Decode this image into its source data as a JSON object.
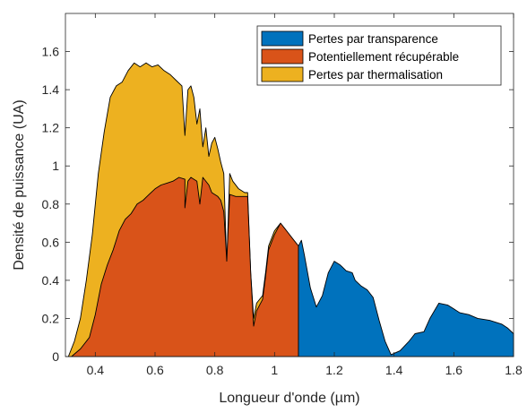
{
  "chart_data": {
    "type": "area",
    "title": "",
    "xlabel": "Longueur d'onde (µm)",
    "ylabel": "Densité de puissance (UA)",
    "xlim": [
      0.3,
      1.8
    ],
    "ylim": [
      0,
      1.8
    ],
    "xticks": [
      "0.4",
      "0.6",
      "0.8",
      "1",
      "1.2",
      "1.4",
      "1.6",
      "1.8"
    ],
    "yticks": [
      "0",
      "0.2",
      "0.4",
      "0.6",
      "0.8",
      "1",
      "1.2",
      "1.4",
      "1.6"
    ],
    "grid": false,
    "legend_position": "top-right",
    "series": [
      {
        "name": "Pertes par transparence",
        "color": "#0072BD",
        "points": [
          [
            1.08,
            0
          ],
          [
            1.08,
            0.58
          ],
          [
            1.09,
            0.61
          ],
          [
            1.1,
            0.53
          ],
          [
            1.12,
            0.36
          ],
          [
            1.14,
            0.26
          ],
          [
            1.16,
            0.32
          ],
          [
            1.18,
            0.44
          ],
          [
            1.2,
            0.5
          ],
          [
            1.22,
            0.48
          ],
          [
            1.24,
            0.45
          ],
          [
            1.26,
            0.44
          ],
          [
            1.27,
            0.4
          ],
          [
            1.29,
            0.37
          ],
          [
            1.31,
            0.35
          ],
          [
            1.33,
            0.31
          ],
          [
            1.35,
            0.19
          ],
          [
            1.37,
            0.08
          ],
          [
            1.39,
            0.01
          ],
          [
            1.42,
            0.03
          ],
          [
            1.45,
            0.08
          ],
          [
            1.47,
            0.12
          ],
          [
            1.5,
            0.13
          ],
          [
            1.52,
            0.2
          ],
          [
            1.55,
            0.28
          ],
          [
            1.58,
            0.27
          ],
          [
            1.6,
            0.25
          ],
          [
            1.62,
            0.23
          ],
          [
            1.65,
            0.22
          ],
          [
            1.68,
            0.2
          ],
          [
            1.72,
            0.19
          ],
          [
            1.76,
            0.17
          ],
          [
            1.78,
            0.15
          ],
          [
            1.8,
            0.12
          ],
          [
            1.8,
            0
          ]
        ]
      },
      {
        "name": "Potentiellement récupérable",
        "color": "#D95319",
        "points": [
          [
            0.32,
            0
          ],
          [
            0.35,
            0.04
          ],
          [
            0.38,
            0.1
          ],
          [
            0.4,
            0.22
          ],
          [
            0.42,
            0.38
          ],
          [
            0.44,
            0.48
          ],
          [
            0.46,
            0.56
          ],
          [
            0.48,
            0.66
          ],
          [
            0.5,
            0.72
          ],
          [
            0.52,
            0.75
          ],
          [
            0.54,
            0.8
          ],
          [
            0.56,
            0.82
          ],
          [
            0.58,
            0.85
          ],
          [
            0.6,
            0.88
          ],
          [
            0.62,
            0.9
          ],
          [
            0.64,
            0.91
          ],
          [
            0.66,
            0.92
          ],
          [
            0.68,
            0.94
          ],
          [
            0.7,
            0.93
          ],
          [
            0.7,
            0.78
          ],
          [
            0.71,
            0.92
          ],
          [
            0.72,
            0.94
          ],
          [
            0.74,
            0.92
          ],
          [
            0.75,
            0.8
          ],
          [
            0.76,
            0.94
          ],
          [
            0.78,
            0.9
          ],
          [
            0.79,
            0.86
          ],
          [
            0.81,
            0.84
          ],
          [
            0.82,
            0.82
          ],
          [
            0.83,
            0.76
          ],
          [
            0.84,
            0.5
          ],
          [
            0.85,
            0.85
          ],
          [
            0.87,
            0.84
          ],
          [
            0.89,
            0.84
          ],
          [
            0.91,
            0.84
          ],
          [
            0.92,
            0.44
          ],
          [
            0.93,
            0.16
          ],
          [
            0.94,
            0.24
          ],
          [
            0.96,
            0.3
          ],
          [
            0.97,
            0.42
          ],
          [
            0.98,
            0.56
          ],
          [
            1.0,
            0.64
          ],
          [
            1.02,
            0.7
          ],
          [
            1.04,
            0.66
          ],
          [
            1.06,
            0.62
          ],
          [
            1.08,
            0.58
          ],
          [
            1.08,
            0
          ]
        ]
      },
      {
        "name": "Pertes par thermalisation",
        "color": "#EDB120",
        "points": [
          [
            0.31,
            0
          ],
          [
            0.33,
            0.08
          ],
          [
            0.35,
            0.2
          ],
          [
            0.37,
            0.4
          ],
          [
            0.39,
            0.64
          ],
          [
            0.41,
            0.96
          ],
          [
            0.43,
            1.18
          ],
          [
            0.45,
            1.36
          ],
          [
            0.47,
            1.42
          ],
          [
            0.49,
            1.44
          ],
          [
            0.51,
            1.5
          ],
          [
            0.53,
            1.54
          ],
          [
            0.55,
            1.52
          ],
          [
            0.57,
            1.54
          ],
          [
            0.59,
            1.52
          ],
          [
            0.61,
            1.53
          ],
          [
            0.63,
            1.5
          ],
          [
            0.65,
            1.48
          ],
          [
            0.67,
            1.45
          ],
          [
            0.69,
            1.42
          ],
          [
            0.7,
            1.16
          ],
          [
            0.71,
            1.4
          ],
          [
            0.72,
            1.42
          ],
          [
            0.73,
            1.36
          ],
          [
            0.74,
            1.22
          ],
          [
            0.75,
            1.3
          ],
          [
            0.76,
            1.1
          ],
          [
            0.77,
            1.2
          ],
          [
            0.78,
            1.05
          ],
          [
            0.79,
            1.12
          ],
          [
            0.8,
            1.15
          ],
          [
            0.81,
            1.09
          ],
          [
            0.82,
            1.02
          ],
          [
            0.83,
            0.96
          ],
          [
            0.84,
            0.48
          ],
          [
            0.85,
            0.96
          ],
          [
            0.86,
            0.92
          ],
          [
            0.88,
            0.88
          ],
          [
            0.9,
            0.86
          ],
          [
            0.91,
            0.86
          ],
          [
            0.92,
            0.44
          ],
          [
            0.93,
            0.2
          ],
          [
            0.94,
            0.28
          ],
          [
            0.96,
            0.32
          ],
          [
            0.97,
            0.44
          ],
          [
            0.98,
            0.58
          ],
          [
            1.0,
            0.66
          ],
          [
            1.02,
            0.7
          ],
          [
            1.04,
            0.66
          ],
          [
            1.06,
            0.62
          ],
          [
            1.08,
            0.58
          ],
          [
            1.08,
            0
          ]
        ]
      }
    ]
  }
}
